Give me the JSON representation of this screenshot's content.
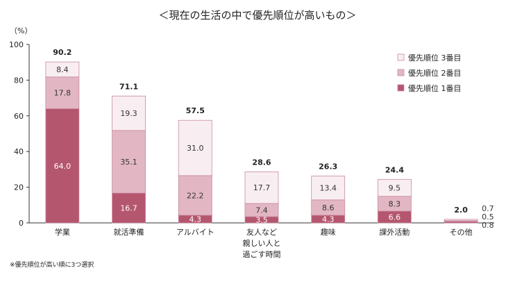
{
  "chart_data": {
    "type": "bar",
    "stacked": true,
    "title": "＜現在の生活の中で優先順位が高いもの＞",
    "ylabel": "（%）",
    "ylim": [
      0,
      100
    ],
    "yticks": [
      "0",
      "20",
      "40",
      "60",
      "80",
      "100"
    ],
    "categories": [
      "学業",
      "就活準備",
      "アルバイト",
      "友人など\n親しい人と\n過ごす時間",
      "趣味",
      "課外活動",
      "その他"
    ],
    "series": [
      {
        "name": "優先順位 1番目",
        "color": "#b5566f",
        "values": [
          64.0,
          16.7,
          4.3,
          3.5,
          4.3,
          6.6,
          0.8
        ]
      },
      {
        "name": "優先順位 2番目",
        "color": "#e2b7c3",
        "values": [
          17.8,
          35.1,
          22.2,
          7.4,
          8.6,
          8.3,
          0.5
        ]
      },
      {
        "name": "優先順位 3番目",
        "color": "#f8eef1",
        "values": [
          8.4,
          19.3,
          31.0,
          17.7,
          13.4,
          9.5,
          0.7
        ]
      }
    ],
    "totals": [
      "90.2",
      "71.1",
      "57.5",
      "28.6",
      "26.3",
      "24.4",
      "2.0"
    ],
    "legend_position": "top-right",
    "footnote": "※優先順位が高い順に3つ選択"
  }
}
